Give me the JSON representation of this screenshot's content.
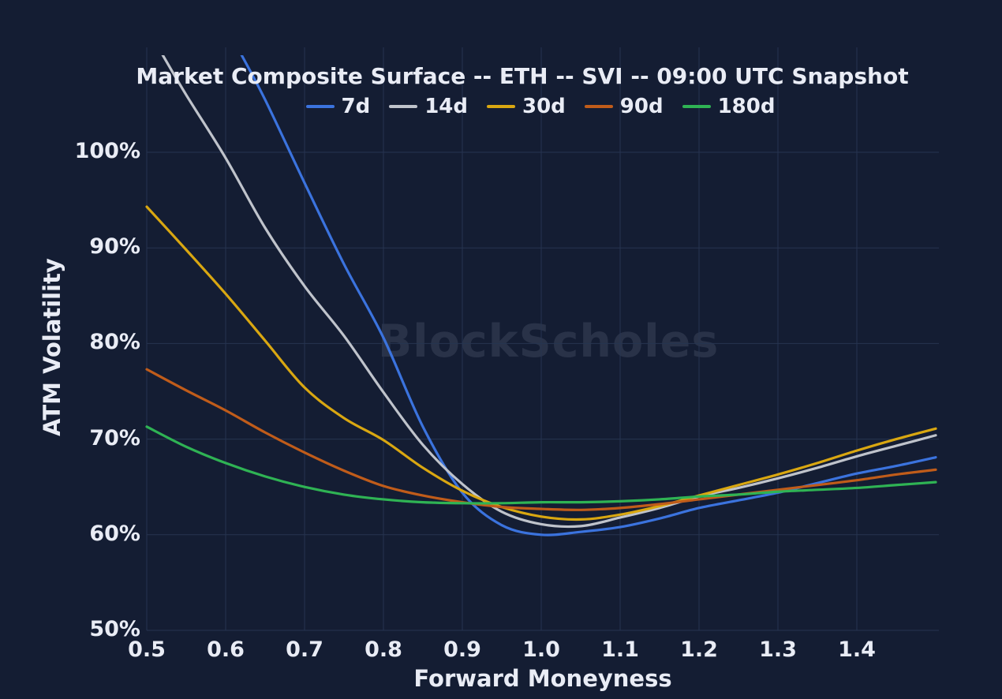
{
  "header": {
    "watermark": "BlockScholes"
  },
  "colors": {
    "background": "#141d33",
    "grid": "#263450",
    "text": "#e9ecf5",
    "accent_blue": "#3b73de"
  },
  "chart_data": {
    "type": "line",
    "title": "Market Composite Surface -- ETH -- SVI -- 09:00 UTC Snapshot",
    "xlabel": "Forward Moneyness",
    "ylabel": "ATM Volatility",
    "xlim": [
      0.5,
      1.504
    ],
    "ylim": [
      50,
      110.2
    ],
    "grid": true,
    "legend_position": "top-center",
    "x_ticks": {
      "values": [
        0.5,
        0.6,
        0.7,
        0.8,
        0.9,
        1.0,
        1.1,
        1.2,
        1.3,
        1.4
      ],
      "labels": [
        "0.5",
        "0.6",
        "0.7",
        "0.8",
        "0.9",
        "1.0",
        "1.1",
        "1.2",
        "1.3",
        "1.4"
      ]
    },
    "y_ticks": {
      "values": [
        50,
        60,
        70,
        80,
        90,
        100
      ],
      "labels": [
        "50%",
        "60%",
        "70%",
        "80%",
        "90%",
        "100%"
      ]
    },
    "y_unit": "%",
    "series": [
      {
        "name": "7d",
        "color": "#3b73de",
        "x": [
          0.62,
          0.65,
          0.7,
          0.75,
          0.8,
          0.85,
          0.9,
          0.95,
          1.0,
          1.05,
          1.1,
          1.15,
          1.2,
          1.25,
          1.3,
          1.35,
          1.4,
          1.45,
          1.5
        ],
        "values": [
          110.2,
          105.5,
          96.8,
          88.3,
          80.6,
          71.3,
          64.4,
          61.0,
          60.0,
          60.3,
          60.8,
          61.7,
          62.8,
          63.6,
          64.4,
          65.4,
          66.4,
          67.2,
          68.1
        ]
      },
      {
        "name": "14d",
        "color": "#bfc3cb",
        "x": [
          0.52,
          0.55,
          0.6,
          0.65,
          0.7,
          0.75,
          0.8,
          0.85,
          0.9,
          0.95,
          1.0,
          1.05,
          1.1,
          1.15,
          1.2,
          1.25,
          1.3,
          1.35,
          1.4,
          1.45,
          1.5
        ],
        "values": [
          110.2,
          106.0,
          99.4,
          92.1,
          86.0,
          80.8,
          74.9,
          69.4,
          65.3,
          62.4,
          61.1,
          60.9,
          61.8,
          62.8,
          64.0,
          64.9,
          65.9,
          67.0,
          68.2,
          69.3,
          70.4
        ]
      },
      {
        "name": "30d",
        "color": "#d9a711",
        "x": [
          0.5,
          0.55,
          0.6,
          0.65,
          0.7,
          0.75,
          0.8,
          0.85,
          0.9,
          0.95,
          1.0,
          1.05,
          1.1,
          1.15,
          1.2,
          1.25,
          1.3,
          1.35,
          1.4,
          1.45,
          1.5
        ],
        "values": [
          94.3,
          89.8,
          85.2,
          80.3,
          75.4,
          72.2,
          69.9,
          67.0,
          64.6,
          62.9,
          61.9,
          61.6,
          62.1,
          63.0,
          64.1,
          65.2,
          66.3,
          67.5,
          68.8,
          70.0,
          71.1
        ]
      },
      {
        "name": "90d",
        "color": "#c05c1a",
        "x": [
          0.5,
          0.55,
          0.6,
          0.65,
          0.7,
          0.75,
          0.8,
          0.85,
          0.9,
          0.95,
          1.0,
          1.05,
          1.1,
          1.15,
          1.2,
          1.25,
          1.3,
          1.35,
          1.4,
          1.45,
          1.5
        ],
        "values": [
          77.3,
          75.1,
          73.0,
          70.7,
          68.6,
          66.7,
          65.1,
          64.1,
          63.4,
          62.9,
          62.7,
          62.6,
          62.8,
          63.2,
          63.7,
          64.2,
          64.7,
          65.2,
          65.7,
          66.3,
          66.8
        ]
      },
      {
        "name": "180d",
        "color": "#2fb354",
        "x": [
          0.5,
          0.55,
          0.6,
          0.65,
          0.7,
          0.75,
          0.8,
          0.85,
          0.9,
          0.95,
          1.0,
          1.05,
          1.1,
          1.15,
          1.2,
          1.25,
          1.3,
          1.35,
          1.4,
          1.45,
          1.5
        ],
        "values": [
          71.3,
          69.2,
          67.5,
          66.1,
          65.0,
          64.2,
          63.7,
          63.4,
          63.3,
          63.3,
          63.4,
          63.4,
          63.5,
          63.7,
          64.0,
          64.2,
          64.5,
          64.7,
          64.9,
          65.2,
          65.5
        ]
      }
    ]
  }
}
